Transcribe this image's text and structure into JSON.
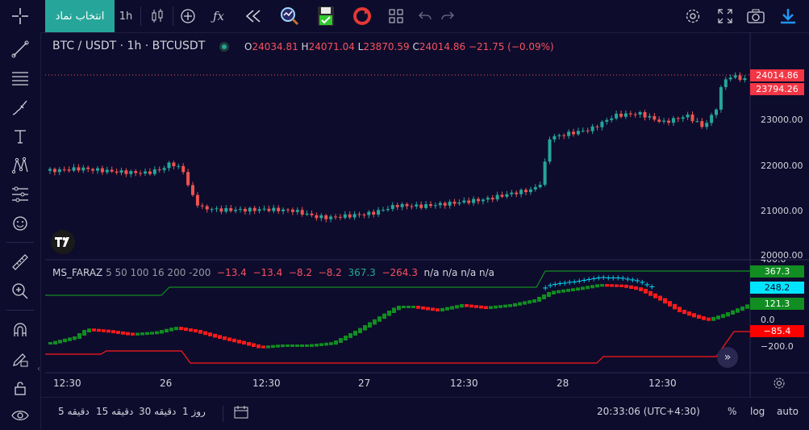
{
  "toolbar": {
    "symbol_search_label": "انتخاب نماد",
    "interval": "1h",
    "icons": [
      "crosshair-icon",
      "candle-type-icon",
      "add-indicator-icon",
      "fx-icon",
      "replay-icon",
      "magnifier-icon",
      "save-icon",
      "refresh-icon",
      "layout-icon",
      "undo-icon",
      "redo-icon",
      "settings-icon",
      "fullscreen-icon",
      "camera-icon",
      "download-icon"
    ]
  },
  "left_tools": [
    "cursor-icon",
    "trendline-icon",
    "fib-icon",
    "brush-icon",
    "text-icon",
    "pattern-icon",
    "ruler-lines-icon",
    "emoji-icon",
    "ruler-icon",
    "zoom-icon",
    "magnet-icon",
    "lock-edit-icon",
    "lock-icon",
    "eye-icon"
  ],
  "chart": {
    "symbol_title": "BTC / USDT · 1h · BTCUSDT",
    "ohlc": {
      "o_label": "O",
      "o": "24034.81",
      "h_label": "H",
      "h": "24071.04",
      "l_label": "L",
      "l": "23870.59",
      "c_label": "C",
      "c": "24014.86",
      "change": "−21.75 (−0.09%)"
    },
    "price_axis": [
      "23000.00",
      "22000.00",
      "21000.00",
      "20000.00"
    ],
    "last_price_tag": "24014.86",
    "second_price_tag": "23794.26",
    "logo": "TV"
  },
  "indicator": {
    "name": "MS_FARAZ",
    "params": "5 50 100 16 200 -200",
    "values_red": [
      "−13.4",
      "−13.4",
      "−8.2",
      "−8.2"
    ],
    "value_green": "367.3",
    "value_red2": "−264.3",
    "na_values": [
      "n/a",
      "n/a",
      "n/a",
      "n/a"
    ],
    "axis": [
      "0.0",
      "−200.0"
    ],
    "tags": {
      "green_top": "367.3",
      "cyan": "248.2",
      "green_mid": "121.3",
      "red": "−85.4"
    },
    "top_partial": "400.0"
  },
  "time_axis": [
    "12:30",
    "26",
    "12:30",
    "27",
    "12:30",
    "28",
    "12:30"
  ],
  "bottom": {
    "ranges": [
      "5  دقیقه",
      "15  دقیقه",
      "30  دقیقه",
      "1  روز"
    ],
    "clock": "20:33:06 (UTC+4:30)",
    "percent": "%",
    "log": "log",
    "auto": "auto"
  },
  "colors": {
    "bg": "#0e0c2c",
    "up": "#26a69a",
    "down": "#ef5350",
    "accent": "#2962ff",
    "tag_green": "#118d22",
    "tag_red": "#ff0000",
    "tag_cyan": "#00e5ff"
  }
}
